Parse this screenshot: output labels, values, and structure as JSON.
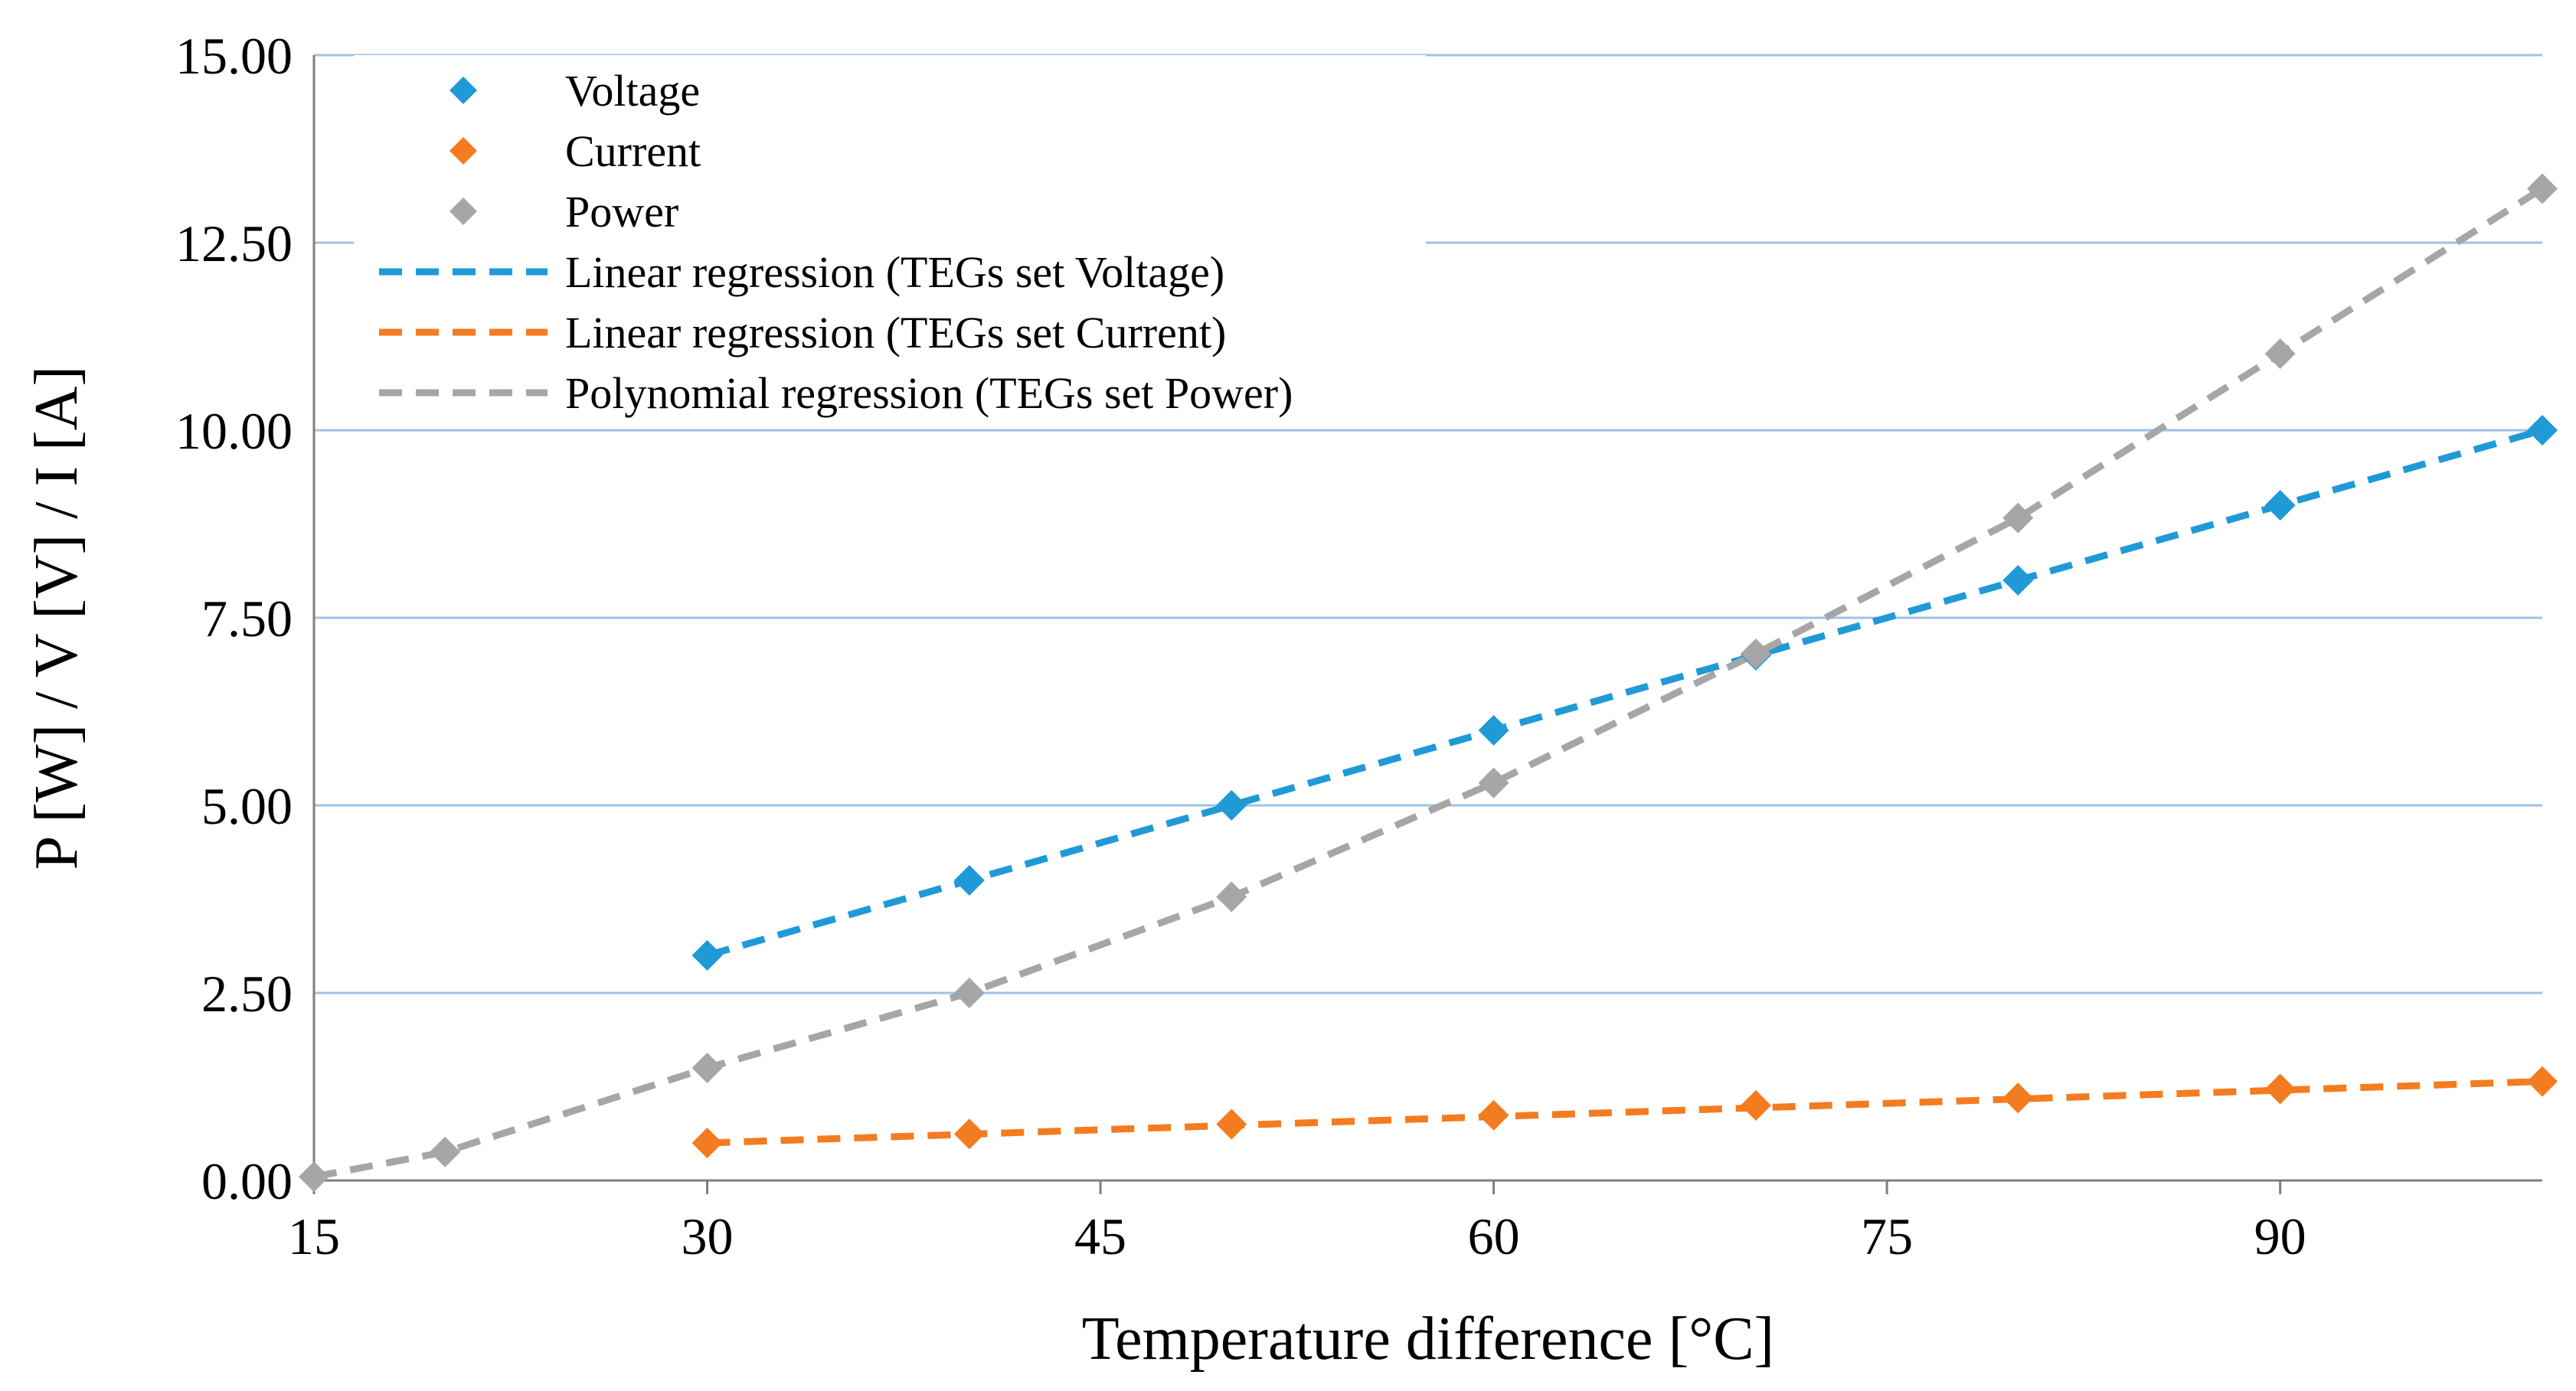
{
  "chart_data": {
    "type": "scatter",
    "title": "",
    "xlabel": "Temperature difference [°C]",
    "ylabel": "P [W]  / V [V]  / I [A]",
    "xlim": [
      15,
      100
    ],
    "ylim": [
      0,
      15
    ],
    "xticks": [
      15,
      30,
      45,
      60,
      75,
      90
    ],
    "yticks": [
      0,
      2.5,
      5,
      7.5,
      10,
      12.5,
      15
    ],
    "ytick_labels": [
      "0.00",
      "2.50",
      "5.00",
      "7.50",
      "10.00",
      "12.50",
      "15.00"
    ],
    "grid": "horizontal",
    "legend_position": "top-left",
    "series": [
      {
        "name": "Voltage",
        "kind": "points",
        "marker": "diamond",
        "color": "#1F9AD6",
        "x": [
          30,
          40,
          50,
          60,
          70,
          80,
          90,
          100
        ],
        "y": [
          3.0,
          4.0,
          5.0,
          6.0,
          7.0,
          8.0,
          9.0,
          10.0
        ]
      },
      {
        "name": "Current",
        "kind": "points",
        "marker": "diamond",
        "color": "#F47C20",
        "x": [
          30,
          40,
          50,
          60,
          70,
          80,
          90,
          100
        ],
        "y": [
          0.5,
          0.62,
          0.75,
          0.87,
          1.0,
          1.1,
          1.22,
          1.32
        ]
      },
      {
        "name": "Power",
        "kind": "points",
        "marker": "diamond",
        "color": "#A6A6A6",
        "x": [
          15,
          20,
          30,
          40,
          50,
          60,
          70,
          80,
          90,
          100
        ],
        "y": [
          0.05,
          0.38,
          1.5,
          2.5,
          3.78,
          5.3,
          7.02,
          8.83,
          11.02,
          13.22
        ]
      },
      {
        "name": "Linear regression (TEGs set Voltage)",
        "kind": "trendline",
        "fit": "linear",
        "color": "#1F9AD6",
        "x": [
          30,
          100
        ],
        "y": [
          3.0,
          10.0
        ]
      },
      {
        "name": "Linear regression (TEGs set Current)",
        "kind": "trendline",
        "fit": "linear",
        "color": "#F47C20",
        "x": [
          30,
          100
        ],
        "y": [
          0.5,
          1.32
        ]
      },
      {
        "name": "Polynomial regression (TEGs set Power)",
        "kind": "trendline",
        "fit": "polynomial",
        "color": "#A6A6A6",
        "x": [
          15,
          20,
          30,
          40,
          50,
          60,
          70,
          80,
          90,
          100
        ],
        "y": [
          0.05,
          0.38,
          1.5,
          2.5,
          3.78,
          5.3,
          7.02,
          8.83,
          11.02,
          13.22
        ]
      }
    ]
  }
}
